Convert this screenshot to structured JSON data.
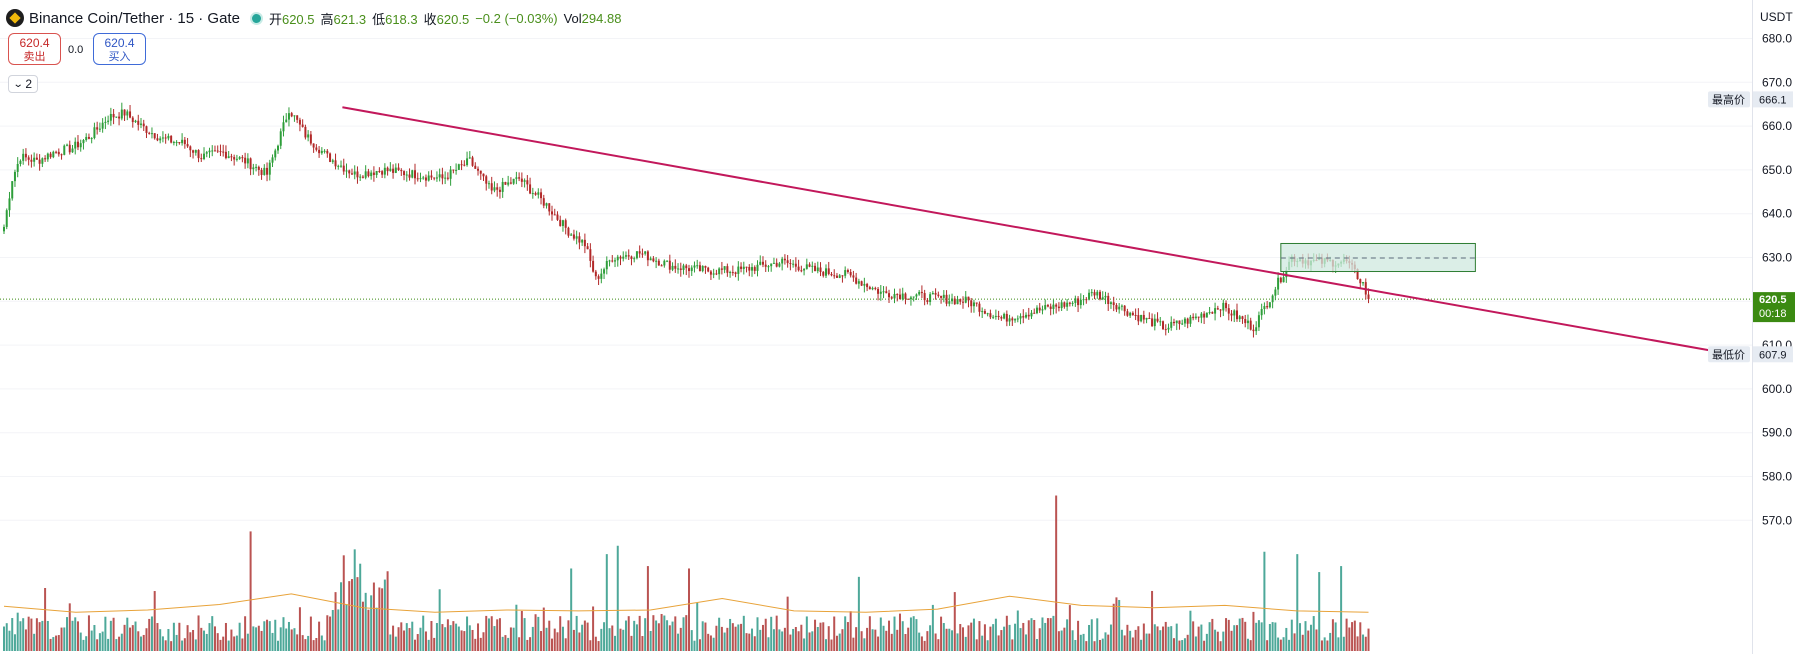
{
  "header": {
    "symbol": "Binance Coin/Tether · 15 · Gate",
    "open_label": "开",
    "open": "620.5",
    "high_label": "高",
    "high": "621.3",
    "low_label": "低",
    "low": "618.3",
    "close_label": "收",
    "close": "620.5",
    "change": "−0.2 (−0.03%)",
    "vol_label": "Vol",
    "vol": "294.88"
  },
  "trade": {
    "sell_price": "620.4",
    "sell_label": "卖出",
    "spread": "0.0",
    "buy_price": "620.4",
    "buy_label": "买入"
  },
  "indicator_toggle": {
    "count": "2"
  },
  "axis": {
    "currency": "USDT"
  },
  "colors": {
    "up": "#26a69a",
    "down": "#b22828",
    "vol_up": "#3a9e8e",
    "vol_down": "#b3403f",
    "trendline": "#c2185b",
    "volume_ma": "#e8a33a",
    "zone_fill": "#cfe8df",
    "zone_border": "#2e7d32",
    "price_tag_bg": "#3b8a12"
  },
  "chart_data": {
    "type": "candlestick",
    "y_ticks": [
      "680.0",
      "670.0",
      "660.0",
      "650.0",
      "640.0",
      "630.0",
      "620.0",
      "610.0",
      "600.0",
      "590.0",
      "580.0",
      "570.0"
    ],
    "y_range": [
      563,
      683
    ],
    "current_price": "620.5",
    "countdown": "00:18",
    "high_marker": {
      "label": "最高价",
      "value": "666.1"
    },
    "low_marker": {
      "label": "最低价",
      "value": "607.9"
    },
    "trendline": {
      "from": {
        "bar": 0.2,
        "price": 664.3
      },
      "to": {
        "bar": 1.0,
        "price": 608.7
      }
    },
    "zone": {
      "top": 633.2,
      "bottom": 626.8,
      "mid": 629.9
    },
    "anchors": [
      [
        0,
        637
      ],
      [
        3,
        648
      ],
      [
        6,
        653
      ],
      [
        12,
        652
      ],
      [
        18,
        654
      ],
      [
        25,
        655
      ],
      [
        32,
        658
      ],
      [
        38,
        662
      ],
      [
        44,
        663
      ],
      [
        50,
        660
      ],
      [
        58,
        657
      ],
      [
        66,
        656
      ],
      [
        72,
        653
      ],
      [
        80,
        654
      ],
      [
        88,
        652
      ],
      [
        96,
        649
      ],
      [
        102,
        660
      ],
      [
        104,
        664
      ],
      [
        110,
        658
      ],
      [
        118,
        653
      ],
      [
        128,
        649
      ],
      [
        138,
        650
      ],
      [
        150,
        649
      ],
      [
        160,
        648
      ],
      [
        170,
        652
      ],
      [
        178,
        645
      ],
      [
        188,
        648
      ],
      [
        198,
        642
      ],
      [
        206,
        636
      ],
      [
        212,
        633
      ],
      [
        216,
        625
      ],
      [
        222,
        630
      ],
      [
        232,
        631
      ],
      [
        244,
        628
      ],
      [
        256,
        627
      ],
      [
        268,
        627
      ],
      [
        284,
        629
      ],
      [
        296,
        627
      ],
      [
        308,
        626
      ],
      [
        320,
        622
      ],
      [
        336,
        621
      ],
      [
        352,
        620
      ],
      [
        364,
        616
      ],
      [
        378,
        618
      ],
      [
        392,
        620
      ],
      [
        398,
        622
      ],
      [
        404,
        620
      ],
      [
        412,
        617
      ],
      [
        424,
        614
      ],
      [
        434,
        616
      ],
      [
        444,
        619
      ],
      [
        456,
        614
      ],
      [
        470,
        630
      ],
      [
        478,
        629
      ],
      [
        490,
        629
      ],
      [
        496,
        624
      ],
      [
        498,
        620
      ]
    ],
    "volume_ma": [
      0.58,
      0.45,
      0.5,
      0.62,
      0.85,
      0.55,
      0.45,
      0.5,
      0.48,
      0.5,
      0.75,
      0.48,
      0.45,
      0.52,
      0.8,
      0.6,
      0.55,
      0.6,
      0.48,
      0.45
    ],
    "volume_spikes": [
      [
        90,
        1.0
      ],
      [
        124,
        0.8
      ],
      [
        128,
        0.85
      ],
      [
        130,
        0.73
      ],
      [
        207,
        0.69
      ],
      [
        220,
        0.81
      ],
      [
        224,
        0.88
      ],
      [
        235,
        0.71
      ],
      [
        250,
        0.69
      ],
      [
        312,
        0.62
      ],
      [
        384,
        1.3
      ],
      [
        460,
        0.83
      ],
      [
        472,
        0.81
      ],
      [
        480,
        0.66
      ],
      [
        488,
        0.71
      ]
    ]
  }
}
